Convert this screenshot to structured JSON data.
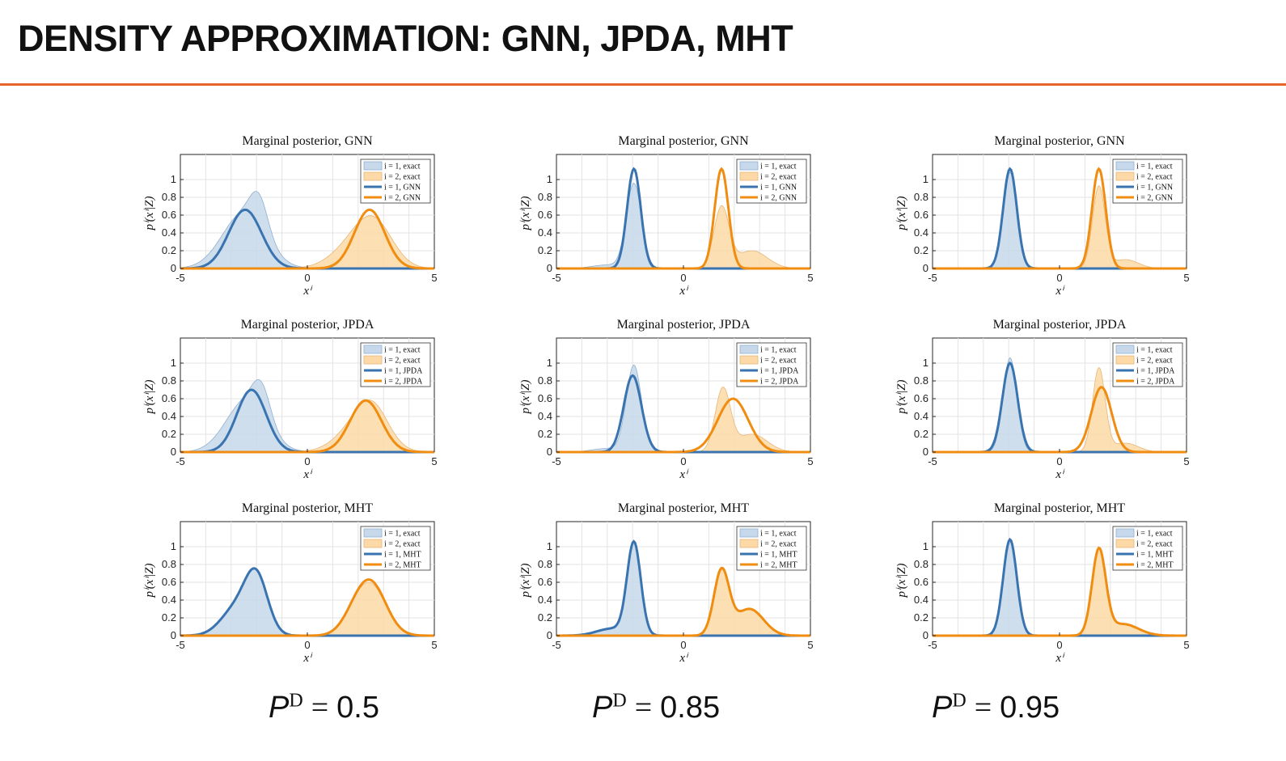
{
  "header": {
    "title": "DENSITY APPROXIMATION: GNN, JPDA, MHT"
  },
  "colors": {
    "accent_rule": "#e8622a",
    "blue_line": "#3a74b0",
    "blue_fill": "#c6d8ea",
    "orange_line": "#f08c10",
    "orange_fill": "#fcd9a6"
  },
  "chart_data": {
    "type": "line",
    "shared": {
      "xlim": [
        -5,
        5
      ],
      "ylim": [
        0,
        1.2
      ],
      "xticks": [
        "-5",
        "0",
        "5"
      ],
      "yticks": [
        "0",
        "0.2",
        "0.4",
        "0.6",
        "0.8",
        "1"
      ],
      "xlabel": "xⁱ",
      "ylabel": "pⁱ(xⁱ|Z)"
    },
    "columns": [
      {
        "pd_symbol": "P",
        "pd_sup": "D",
        "pd_eq": "=",
        "pd_value": "0.5"
      },
      {
        "pd_symbol": "P",
        "pd_sup": "D",
        "pd_eq": "=",
        "pd_value": "0.85"
      },
      {
        "pd_symbol": "P",
        "pd_sup": "D",
        "pd_eq": "=",
        "pd_value": "0.95"
      }
    ],
    "rows": [
      {
        "method": "GNN",
        "title": "Marginal posterior, GNN",
        "legend": [
          "i = 1, exact",
          "i = 2, exact",
          "i = 1, GNN",
          "i = 2, GNN"
        ]
      },
      {
        "method": "JPDA",
        "title": "Marginal posterior, JPDA",
        "legend": [
          "i = 1, exact",
          "i = 2, exact",
          "i = 1, JPDA",
          "i = 2, JPDA"
        ]
      },
      {
        "method": "MHT",
        "title": "Marginal posterior, MHT",
        "legend": [
          "i = 1, exact",
          "i = 2, exact",
          "i = 1, MHT",
          "i = 2, MHT"
        ]
      }
    ],
    "legend_position": "top-right",
    "panels": [
      {
        "row": 0,
        "col": 0,
        "exact1": [
          [
            -2.5,
            0.62,
            0.85
          ],
          [
            -1.9,
            0.36,
            0.35
          ],
          [
            -2.3,
            0.0,
            1.0
          ]
        ],
        "exact2": [
          [
            2.0,
            0.3,
            0.9
          ],
          [
            2.7,
            0.35,
            0.7
          ]
        ],
        "approx1": [
          [
            -2.45,
            0.66,
            0.65
          ]
        ],
        "approx2": [
          [
            2.45,
            0.66,
            0.6
          ]
        ]
      },
      {
        "row": 0,
        "col": 1,
        "exact1": [
          [
            -1.95,
            0.95,
            0.3
          ],
          [
            -3.0,
            0.04,
            0.6
          ]
        ],
        "exact2": [
          [
            1.5,
            0.68,
            0.3
          ],
          [
            2.7,
            0.2,
            0.6
          ]
        ],
        "approx1": [
          [
            -1.95,
            1.12,
            0.27
          ]
        ],
        "approx2": [
          [
            1.5,
            1.12,
            0.27
          ]
        ]
      },
      {
        "row": 0,
        "col": 2,
        "exact1": [
          [
            -1.95,
            1.08,
            0.27
          ]
        ],
        "exact2": [
          [
            1.55,
            0.92,
            0.25
          ],
          [
            2.6,
            0.1,
            0.5
          ]
        ],
        "approx1": [
          [
            -1.95,
            1.12,
            0.27
          ]
        ],
        "approx2": [
          [
            1.55,
            1.12,
            0.27
          ]
        ]
      },
      {
        "row": 1,
        "col": 0,
        "exact1": [
          [
            -2.4,
            0.58,
            0.8
          ],
          [
            -1.8,
            0.35,
            0.35
          ]
        ],
        "exact2": [
          [
            2.1,
            0.32,
            0.85
          ],
          [
            2.6,
            0.3,
            0.6
          ]
        ],
        "approx1": [
          [
            -2.2,
            0.7,
            0.58
          ]
        ],
        "approx2": [
          [
            2.3,
            0.58,
            0.62
          ]
        ]
      },
      {
        "row": 1,
        "col": 1,
        "exact1": [
          [
            -1.95,
            0.97,
            0.3
          ],
          [
            -3.0,
            0.04,
            0.6
          ]
        ],
        "exact2": [
          [
            1.55,
            0.7,
            0.3
          ],
          [
            2.7,
            0.2,
            0.6
          ]
        ],
        "approx1": [
          [
            -2.0,
            0.86,
            0.35
          ]
        ],
        "approx2": [
          [
            1.95,
            0.6,
            0.6
          ]
        ]
      },
      {
        "row": 1,
        "col": 2,
        "exact1": [
          [
            -1.95,
            1.06,
            0.27
          ]
        ],
        "exact2": [
          [
            1.55,
            0.94,
            0.25
          ],
          [
            2.6,
            0.1,
            0.5
          ]
        ],
        "approx1": [
          [
            -1.95,
            1.0,
            0.3
          ]
        ],
        "approx2": [
          [
            1.65,
            0.73,
            0.4
          ]
        ]
      },
      {
        "row": 2,
        "col": 0,
        "exact1": [
          [
            -2.0,
            0.62,
            0.45
          ],
          [
            -2.8,
            0.3,
            0.6
          ]
        ],
        "exact2": [
          [
            2.5,
            0.55,
            0.6
          ],
          [
            1.8,
            0.12,
            0.5
          ]
        ],
        "approx1": [
          [
            -2.0,
            0.62,
            0.45
          ],
          [
            -2.8,
            0.3,
            0.6
          ]
        ],
        "approx2": [
          [
            2.5,
            0.58,
            0.6
          ],
          [
            1.8,
            0.12,
            0.5
          ]
        ]
      },
      {
        "row": 2,
        "col": 1,
        "exact1": [
          [
            -1.95,
            1.03,
            0.27
          ],
          [
            -2.8,
            0.08,
            0.6
          ]
        ],
        "exact2": [
          [
            1.5,
            0.7,
            0.3
          ],
          [
            2.6,
            0.3,
            0.55
          ]
        ],
        "approx1": [
          [
            -1.95,
            1.03,
            0.27
          ],
          [
            -2.8,
            0.08,
            0.6
          ]
        ],
        "approx2": [
          [
            1.5,
            0.72,
            0.3
          ],
          [
            2.6,
            0.3,
            0.55
          ]
        ]
      },
      {
        "row": 2,
        "col": 2,
        "exact1": [
          [
            -1.95,
            1.08,
            0.27
          ]
        ],
        "exact2": [
          [
            1.55,
            0.95,
            0.27
          ],
          [
            2.5,
            0.13,
            0.6
          ]
        ],
        "approx1": [
          [
            -1.95,
            1.08,
            0.27
          ]
        ],
        "approx2": [
          [
            1.55,
            0.95,
            0.27
          ],
          [
            2.5,
            0.13,
            0.6
          ]
        ]
      }
    ]
  }
}
